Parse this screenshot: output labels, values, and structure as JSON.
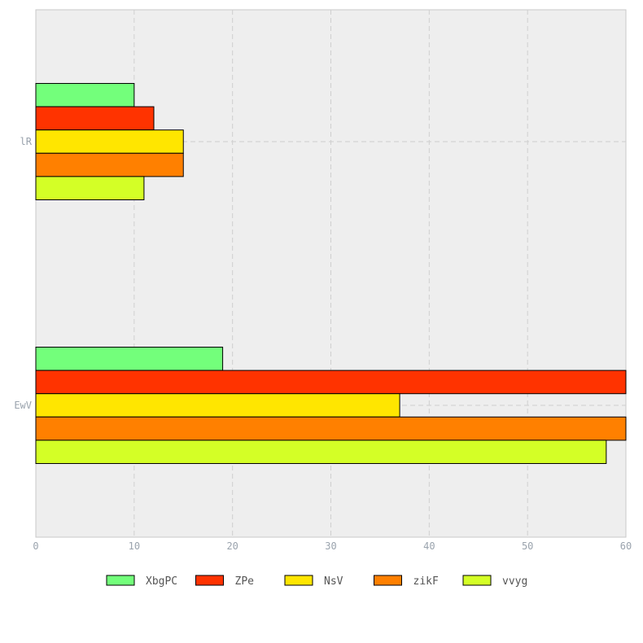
{
  "chart_data": {
    "type": "bar",
    "orientation": "horizontal",
    "categories": [
      "lR",
      "EwV"
    ],
    "series": [
      {
        "name": "XbgPC",
        "color": "#73ff7b",
        "values": [
          10,
          19
        ]
      },
      {
        "name": "ZPe",
        "color": "#ff3300",
        "values": [
          12,
          62
        ]
      },
      {
        "name": "NsV",
        "color": "#ffe600",
        "values": [
          15,
          37
        ]
      },
      {
        "name": "zikF",
        "color": "#ff8000",
        "values": [
          15,
          61
        ]
      },
      {
        "name": "vvyg",
        "color": "#d4ff26",
        "values": [
          11,
          58
        ]
      }
    ],
    "x_ticks": [
      "0",
      "10",
      "20",
      "30",
      "40",
      "50",
      "60"
    ],
    "xlim": [
      0,
      60
    ],
    "title": "",
    "xlabel": "",
    "ylabel": "",
    "grid": true,
    "legend_position": "bottom",
    "background_color": "#eeeeee"
  }
}
